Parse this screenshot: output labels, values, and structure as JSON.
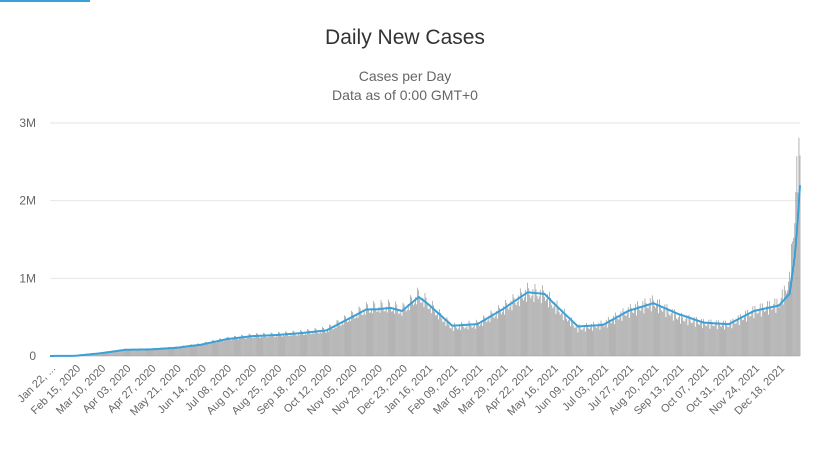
{
  "page": {
    "accent_color": "#3aa0d8"
  },
  "header": {
    "title": "Daily New Cases",
    "subtitle_line1": "Cases per Day",
    "subtitle_line2": "Data as of 0:00 GMT+0"
  },
  "chart_data": {
    "type": "bar",
    "title": "Daily New Cases",
    "subtitle": [
      "Cases per Day",
      "Data as of 0:00 GMT+0"
    ],
    "xlabel": "",
    "ylabel": "",
    "ylim": [
      0,
      3000000
    ],
    "y_ticks": [
      0,
      1000000,
      2000000,
      3000000
    ],
    "y_tick_labels": [
      "0",
      "1M",
      "2M",
      "3M"
    ],
    "x_range": [
      "2020-01-22",
      "2022-01-07"
    ],
    "x_tick_labels": [
      "Jan 22, ...",
      "Feb 15, 2020",
      "Mar 10, 2020",
      "Apr 03, 2020",
      "Apr 27, 2020",
      "May 21, 2020",
      "Jun 14, 2020",
      "Jul 08, 2020",
      "Aug 01, 2020",
      "Aug 25, 2020",
      "Sep 18, 2020",
      "Oct 12, 2020",
      "Nov 05, 2020",
      "Nov 29, 2020",
      "Dec 23, 2020",
      "Jan 16, 2021",
      "Feb 09, 2021",
      "Mar 05, 2021",
      "Mar 29, 2021",
      "Apr 22, 2021",
      "May 16, 2021",
      "Jun 09, 2021",
      "Jul 03, 2021",
      "Jul 27, 2021",
      "Aug 20, 2021",
      "Sep 13, 2021",
      "Oct 07, 2021",
      "Oct 31, 2021",
      "Nov 24, 2021",
      "Dec 18, 2021"
    ],
    "grid": true,
    "legend": "none",
    "series": [
      {
        "type": "bar",
        "color": "#999999",
        "x": [
          "2020-01-22",
          "2020-02-15",
          "2020-03-10",
          "2020-04-03",
          "2020-04-27",
          "2020-05-21",
          "2020-06-14",
          "2020-07-08",
          "2020-08-01",
          "2020-08-25",
          "2020-09-18",
          "2020-10-12",
          "2020-11-05",
          "2020-11-19",
          "2020-11-29",
          "2020-12-12",
          "2020-12-23",
          "2021-01-08",
          "2021-01-16",
          "2021-02-09",
          "2021-03-05",
          "2021-03-29",
          "2021-04-22",
          "2021-05-08",
          "2021-05-16",
          "2021-06-09",
          "2021-07-03",
          "2021-07-27",
          "2021-08-20",
          "2021-09-13",
          "2021-10-07",
          "2021-10-31",
          "2021-11-24",
          "2021-12-18",
          "2021-12-28",
          "2022-01-02",
          "2022-01-05",
          "2022-01-07"
        ],
        "y": [
          600,
          3000,
          40000,
          85000,
          90000,
          110000,
          150000,
          220000,
          260000,
          275000,
          300000,
          340000,
          520000,
          620000,
          640000,
          650000,
          600000,
          800000,
          700000,
          380000,
          420000,
          620000,
          850000,
          820000,
          700000,
          370000,
          420000,
          600000,
          720000,
          520000,
          440000,
          420000,
          600000,
          700000,
          1000000,
          1900000,
          2600000,
          2700000
        ]
      },
      {
        "type": "line",
        "name": "",
        "color": "#3aa0d8",
        "x": [
          "2020-01-22",
          "2020-02-15",
          "2020-03-10",
          "2020-04-03",
          "2020-04-27",
          "2020-05-21",
          "2020-06-14",
          "2020-07-08",
          "2020-08-01",
          "2020-08-25",
          "2020-09-18",
          "2020-10-12",
          "2020-11-05",
          "2020-11-19",
          "2020-11-29",
          "2020-12-12",
          "2020-12-23",
          "2021-01-08",
          "2021-01-16",
          "2021-02-09",
          "2021-03-05",
          "2021-03-29",
          "2021-04-22",
          "2021-05-08",
          "2021-05-16",
          "2021-06-09",
          "2021-07-03",
          "2021-07-27",
          "2021-08-20",
          "2021-09-13",
          "2021-10-07",
          "2021-10-31",
          "2021-11-24",
          "2021-12-18",
          "2021-12-28",
          "2022-01-02",
          "2022-01-05",
          "2022-01-07"
        ],
        "y": [
          500,
          2500,
          35000,
          80000,
          85000,
          105000,
          145000,
          215000,
          255000,
          270000,
          295000,
          330000,
          500000,
          600000,
          600000,
          620000,
          580000,
          760000,
          680000,
          390000,
          410000,
          600000,
          820000,
          800000,
          690000,
          380000,
          400000,
          580000,
          680000,
          540000,
          430000,
          410000,
          580000,
          650000,
          800000,
          1300000,
          1800000,
          2200000
        ]
      }
    ]
  }
}
